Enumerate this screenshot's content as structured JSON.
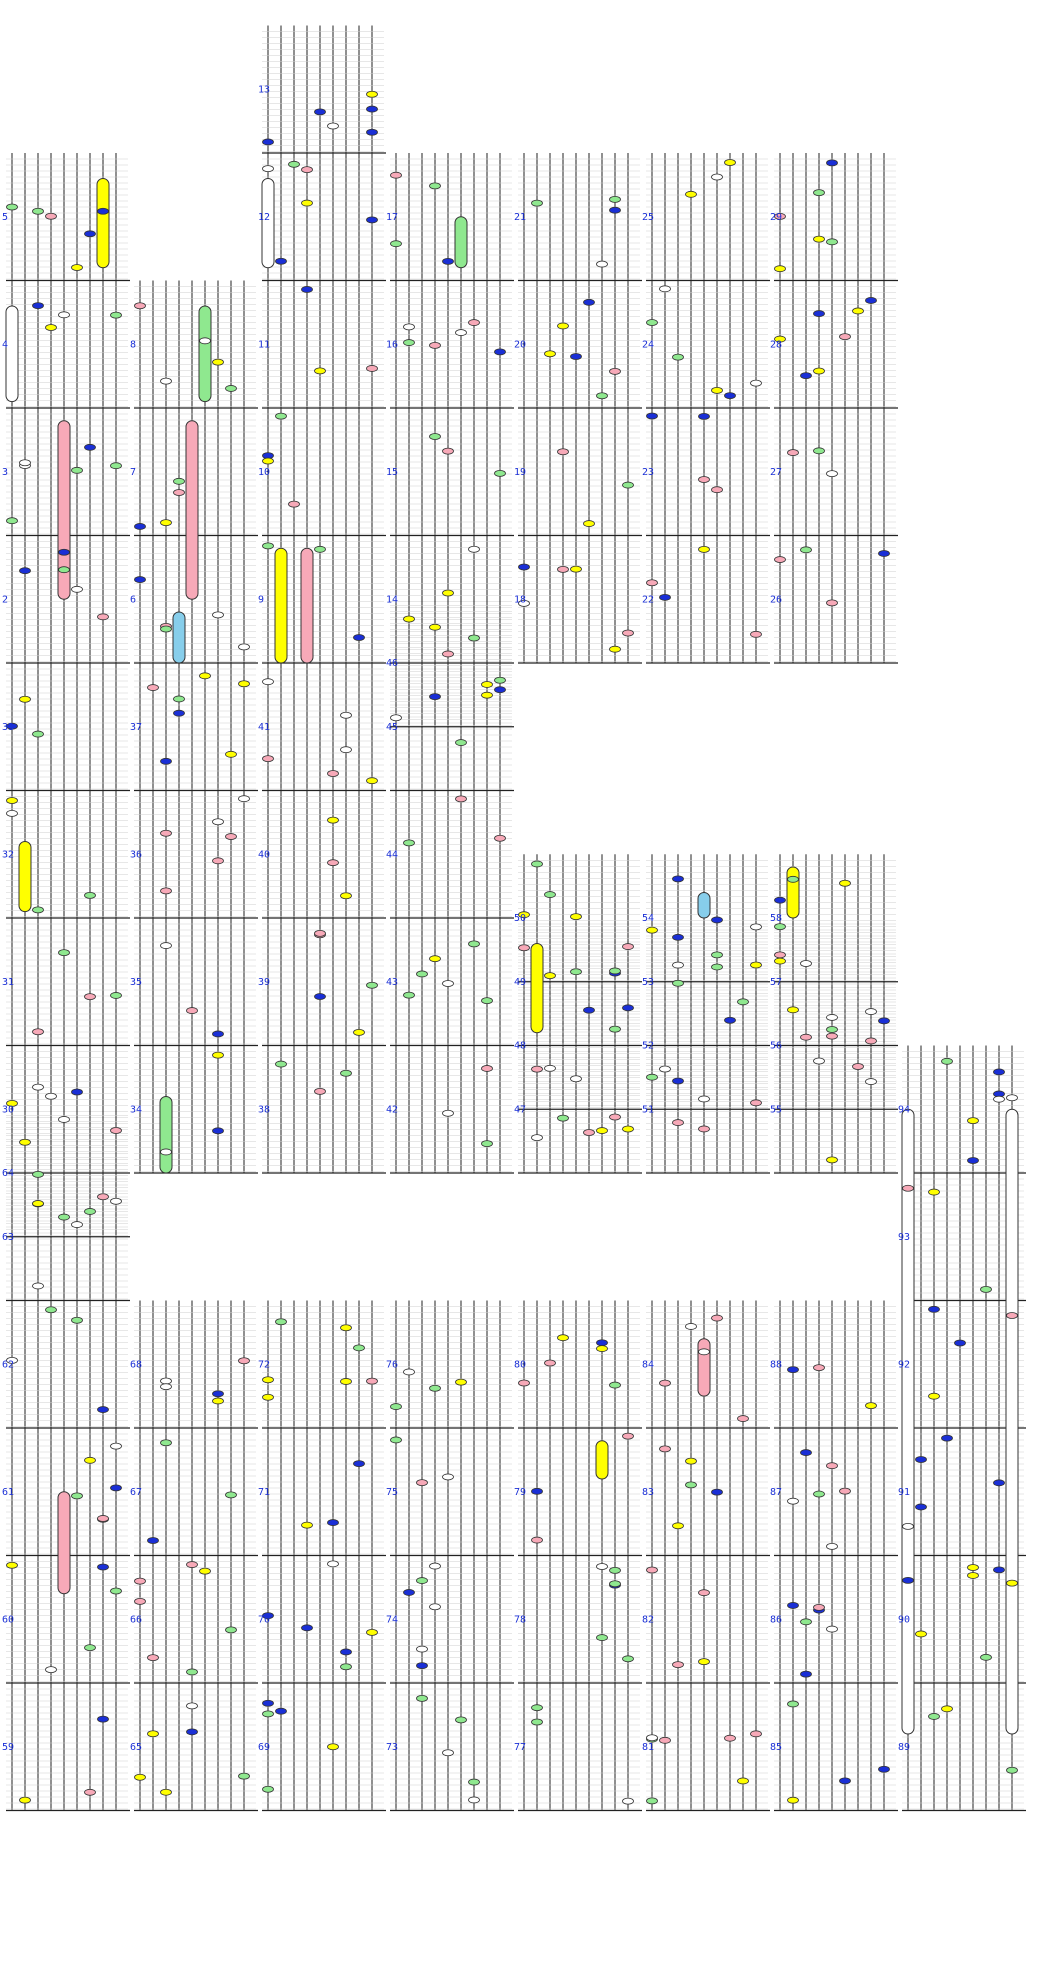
{
  "legend_colors": {
    "white": "#ffffff",
    "yellow": "#ffff00",
    "green": "#8fe88f",
    "pink": "#f7a9b8",
    "blue": "#1a2fd6",
    "cyan": "#87ceeb",
    "label": "#1a2fd6"
  },
  "cells": [
    {
      "id": "2",
      "col": 0,
      "row": 3
    },
    {
      "id": "3",
      "col": 0,
      "row": 2
    },
    {
      "id": "4",
      "col": 0,
      "row": 1
    },
    {
      "id": "5",
      "col": 0,
      "row": 0
    },
    {
      "id": "6",
      "col": 1,
      "row": 3
    },
    {
      "id": "7",
      "col": 1,
      "row": 2
    },
    {
      "id": "8",
      "col": 1,
      "row": 1
    },
    {
      "id": "9",
      "col": 2,
      "row": 3
    },
    {
      "id": "10",
      "col": 2,
      "row": 2
    },
    {
      "id": "11",
      "col": 2,
      "row": 1
    },
    {
      "id": "12",
      "col": 2,
      "row": 0
    },
    {
      "id": "13",
      "col": 2,
      "row": -1
    },
    {
      "id": "14",
      "col": 3,
      "row": 3
    },
    {
      "id": "15",
      "col": 3,
      "row": 2
    },
    {
      "id": "16",
      "col": 3,
      "row": 1
    },
    {
      "id": "17",
      "col": 3,
      "row": 0
    },
    {
      "id": "18",
      "col": 4,
      "row": 3
    },
    {
      "id": "19",
      "col": 4,
      "row": 2
    },
    {
      "id": "20",
      "col": 4,
      "row": 1
    },
    {
      "id": "21",
      "col": 4,
      "row": 0
    },
    {
      "id": "22",
      "col": 5,
      "row": 3
    },
    {
      "id": "23",
      "col": 5,
      "row": 2
    },
    {
      "id": "24",
      "col": 5,
      "row": 1
    },
    {
      "id": "25",
      "col": 5,
      "row": 0
    },
    {
      "id": "26",
      "col": 6,
      "row": 3
    },
    {
      "id": "27",
      "col": 6,
      "row": 2
    },
    {
      "id": "28",
      "col": 6,
      "row": 1
    },
    {
      "id": "29",
      "col": 6,
      "row": 0
    },
    {
      "id": "30",
      "col": 0,
      "row": 7
    },
    {
      "id": "31",
      "col": 0,
      "row": 6
    },
    {
      "id": "32",
      "col": 0,
      "row": 5
    },
    {
      "id": "33",
      "col": 0,
      "row": 4
    },
    {
      "id": "34",
      "col": 1,
      "row": 7
    },
    {
      "id": "35",
      "col": 1,
      "row": 6
    },
    {
      "id": "36",
      "col": 1,
      "row": 5
    },
    {
      "id": "37",
      "col": 1,
      "row": 4
    },
    {
      "id": "38",
      "col": 2,
      "row": 7
    },
    {
      "id": "39",
      "col": 2,
      "row": 6
    },
    {
      "id": "40",
      "col": 2,
      "row": 5
    },
    {
      "id": "41",
      "col": 2,
      "row": 4
    },
    {
      "id": "42",
      "col": 3,
      "row": 7
    },
    {
      "id": "43",
      "col": 3,
      "row": 6
    },
    {
      "id": "44",
      "col": 3,
      "row": 5
    },
    {
      "id": "45",
      "col": 3,
      "row": 4
    },
    {
      "id": "46",
      "col": 3,
      "row": 3.5
    },
    {
      "id": "47",
      "col": 4,
      "row": 7
    },
    {
      "id": "48",
      "col": 4,
      "row": 6.5
    },
    {
      "id": "49",
      "col": 4,
      "row": 6
    },
    {
      "id": "50",
      "col": 4,
      "row": 5.5
    },
    {
      "id": "51",
      "col": 5,
      "row": 7
    },
    {
      "id": "52",
      "col": 5,
      "row": 6.5
    },
    {
      "id": "53",
      "col": 5,
      "row": 6
    },
    {
      "id": "54",
      "col": 5,
      "row": 5.5
    },
    {
      "id": "55",
      "col": 6,
      "row": 7
    },
    {
      "id": "56",
      "col": 6,
      "row": 6.5
    },
    {
      "id": "57",
      "col": 6,
      "row": 6
    },
    {
      "id": "58",
      "col": 6,
      "row": 5.5
    },
    {
      "id": "59",
      "col": 0,
      "row": 12
    },
    {
      "id": "60",
      "col": 0,
      "row": 11
    },
    {
      "id": "61",
      "col": 0,
      "row": 10
    },
    {
      "id": "62",
      "col": 0,
      "row": 9
    },
    {
      "id": "63",
      "col": 0,
      "row": 8
    },
    {
      "id": "64",
      "col": 0,
      "row": 7.5
    },
    {
      "id": "65",
      "col": 1,
      "row": 12
    },
    {
      "id": "66",
      "col": 1,
      "row": 11
    },
    {
      "id": "67",
      "col": 1,
      "row": 10
    },
    {
      "id": "68",
      "col": 1,
      "row": 9
    },
    {
      "id": "69",
      "col": 2,
      "row": 12
    },
    {
      "id": "70",
      "col": 2,
      "row": 11
    },
    {
      "id": "71",
      "col": 2,
      "row": 10
    },
    {
      "id": "72",
      "col": 2,
      "row": 9
    },
    {
      "id": "73",
      "col": 3,
      "row": 12
    },
    {
      "id": "74",
      "col": 3,
      "row": 11
    },
    {
      "id": "75",
      "col": 3,
      "row": 10
    },
    {
      "id": "76",
      "col": 3,
      "row": 9
    },
    {
      "id": "77",
      "col": 4,
      "row": 12
    },
    {
      "id": "78",
      "col": 4,
      "row": 11
    },
    {
      "id": "79",
      "col": 4,
      "row": 10
    },
    {
      "id": "80",
      "col": 4,
      "row": 9
    },
    {
      "id": "81",
      "col": 5,
      "row": 12
    },
    {
      "id": "82",
      "col": 5,
      "row": 11
    },
    {
      "id": "83",
      "col": 5,
      "row": 10
    },
    {
      "id": "84",
      "col": 5,
      "row": 9
    },
    {
      "id": "85",
      "col": 6,
      "row": 12
    },
    {
      "id": "86",
      "col": 6,
      "row": 11
    },
    {
      "id": "87",
      "col": 6,
      "row": 10
    },
    {
      "id": "88",
      "col": 6,
      "row": 9
    },
    {
      "id": "89",
      "col": 7,
      "row": 12
    },
    {
      "id": "90",
      "col": 7,
      "row": 11
    },
    {
      "id": "91",
      "col": 7,
      "row": 10
    },
    {
      "id": "92",
      "col": 7,
      "row": 9
    },
    {
      "id": "93",
      "col": 7,
      "row": 8
    },
    {
      "id": "94",
      "col": 7,
      "row": 7
    }
  ]
}
